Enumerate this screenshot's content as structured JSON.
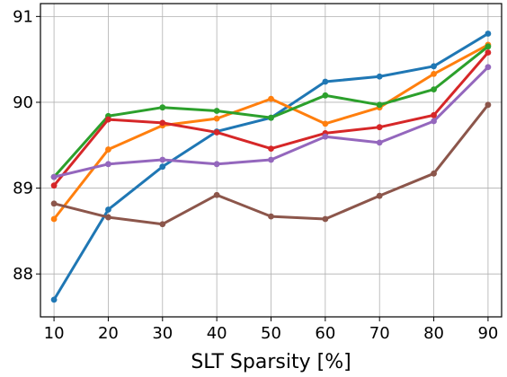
{
  "chart_data": {
    "type": "line",
    "title": "",
    "xlabel": "SLT Sparsity [%]",
    "ylabel": "",
    "x": [
      10,
      20,
      30,
      40,
      50,
      60,
      70,
      80,
      90
    ],
    "xlim": [
      7.5,
      92.5
    ],
    "ylim": [
      87.5,
      91.15
    ],
    "xticks": [
      10,
      20,
      30,
      40,
      50,
      60,
      70,
      80,
      90
    ],
    "yticks": [
      88,
      89,
      90,
      91
    ],
    "grid": true,
    "legend": "none",
    "series": [
      {
        "color": "#1f77b4",
        "values": [
          87.7,
          88.75,
          89.25,
          89.66,
          89.82,
          90.24,
          90.3,
          90.42,
          90.8
        ]
      },
      {
        "color": "#ff7f0e",
        "values": [
          88.64,
          89.45,
          89.73,
          89.81,
          90.04,
          89.75,
          89.94,
          90.33,
          90.67
        ]
      },
      {
        "color": "#2ca02c",
        "values": [
          89.13,
          89.84,
          89.94,
          89.9,
          89.82,
          90.08,
          89.97,
          90.15,
          90.65
        ]
      },
      {
        "color": "#d62728",
        "values": [
          89.03,
          89.8,
          89.76,
          89.65,
          89.46,
          89.64,
          89.71,
          89.85,
          90.58
        ]
      },
      {
        "color": "#9467bd",
        "values": [
          89.13,
          89.28,
          89.33,
          89.28,
          89.33,
          89.6,
          89.53,
          89.78,
          90.41
        ]
      },
      {
        "color": "#8c564b",
        "values": [
          88.82,
          88.66,
          88.58,
          88.92,
          88.67,
          88.64,
          88.91,
          89.17,
          89.97
        ]
      }
    ]
  }
}
